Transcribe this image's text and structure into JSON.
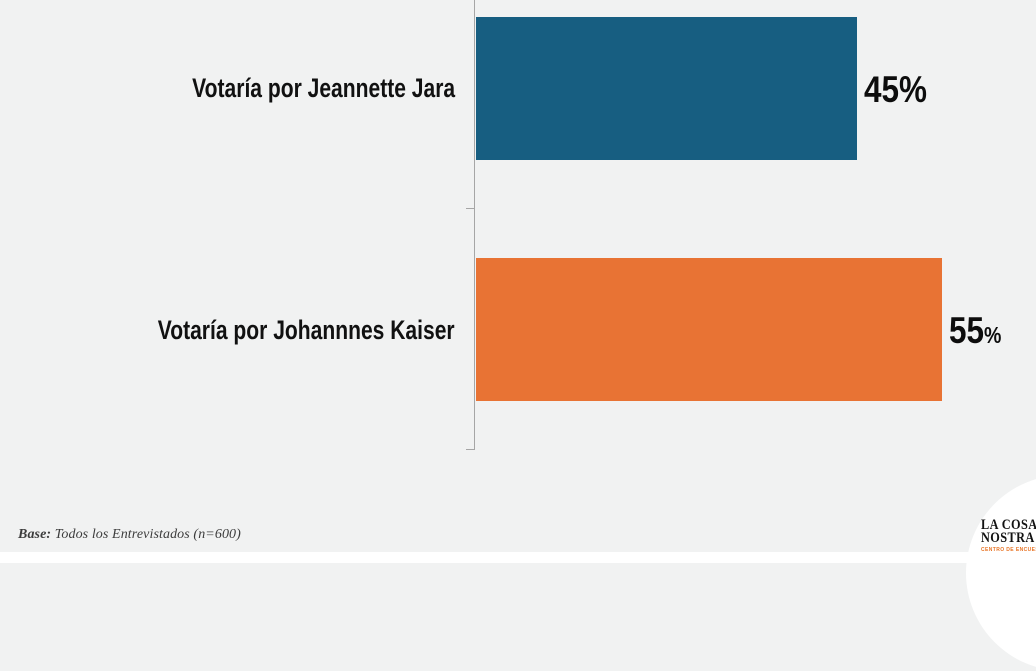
{
  "chart_data": {
    "type": "bar",
    "orientation": "horizontal",
    "title": "",
    "xlabel": "",
    "ylabel": "",
    "categories": [
      "Votaría por Jeannette Jara",
      "Votaría por Johannnes Kaiser"
    ],
    "values": [
      45,
      55
    ],
    "value_labels": [
      {
        "number": "45",
        "suffix": "%",
        "suffix_small": false
      },
      {
        "number": "55",
        "suffix": "%",
        "suffix_small": true
      }
    ],
    "colors": [
      "#175e81",
      "#e87334"
    ],
    "axis": {
      "line_color": "#a6a6a6",
      "ticks": "category boundaries (middle and bottom)",
      "value_axis_visible": false
    },
    "grid": false,
    "legend": false,
    "background": "#f1f2f2"
  },
  "footer": {
    "base_label": "Base:",
    "base_text": " Todos los Entrevistados (n=600)"
  },
  "logo": {
    "line1": "LA COSA",
    "line2": "NOSTRA",
    "tagline": "CENTRO DE ENCUESTAS",
    "tagline_color": "#e87324"
  }
}
